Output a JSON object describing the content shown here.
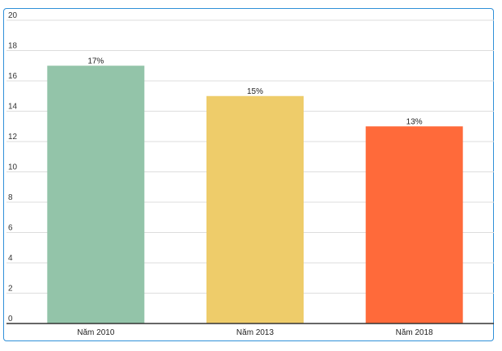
{
  "chart_data": {
    "type": "bar",
    "categories": [
      "Năm 2010",
      "Năm 2013",
      "Năm 2018"
    ],
    "values": [
      17,
      15,
      13
    ],
    "data_labels": [
      "17%",
      "15%",
      "13%"
    ],
    "colors": [
      "#93c4a9",
      "#eecc6a",
      "#ff6a3a"
    ],
    "ylim": [
      0,
      20
    ],
    "yticks": [
      0,
      2,
      4,
      6,
      8,
      10,
      12,
      14,
      16,
      18,
      20
    ],
    "grid": true,
    "title": "",
    "xlabel": "",
    "ylabel": ""
  },
  "style": {
    "frame_border_color": "#2f8fd8",
    "grid_color": "#dddddd",
    "axis_color": "#333333"
  }
}
